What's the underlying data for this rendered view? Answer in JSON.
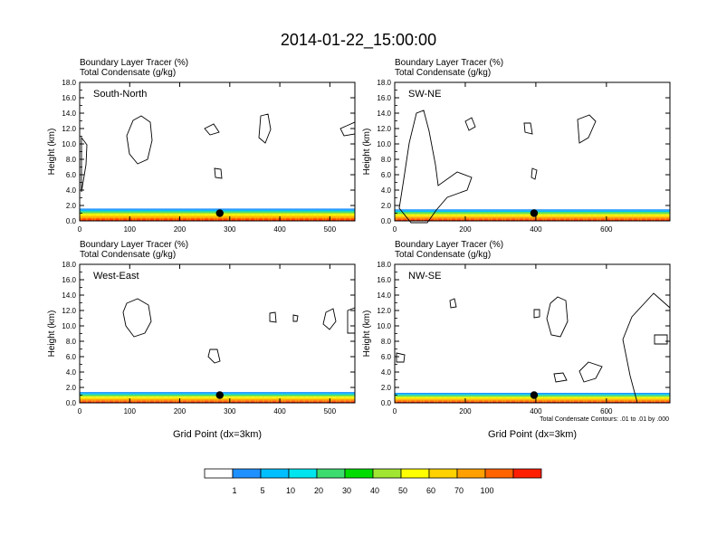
{
  "title": "2014-01-22_15:00:00",
  "colorbar": {
    "colors": [
      "#ffffff",
      "#1e90ff",
      "#00bfff",
      "#00e5ee",
      "#3cdc6e",
      "#00dc00",
      "#a0e632",
      "#ffff00",
      "#ffd200",
      "#ffa000",
      "#ff6400",
      "#ff1e00"
    ],
    "labels": [
      "1",
      "5",
      "10",
      "20",
      "30",
      "40",
      "50",
      "60",
      "70",
      "100"
    ]
  },
  "chart_data": [
    {
      "type": "contour_cross_section",
      "panel": "South-North",
      "line1": "Boundary Layer Tracer   (%)",
      "line2": "Total Condensate   (g/kg)",
      "ylabel": "Height (km)",
      "xlabel": "",
      "ylim": [
        0,
        18
      ],
      "xlim": [
        0,
        550
      ],
      "xticks": [
        "0",
        "100",
        "200",
        "300",
        "400",
        "500"
      ],
      "yticks": [
        "0.0",
        "2.0",
        "4.0",
        "6.0",
        "8.0",
        "10.0",
        "12.0",
        "14.0",
        "16.0",
        "18.0"
      ],
      "tracer_top_km": 1.6,
      "marker_x": 280,
      "marker_y_km": 1.0,
      "footnote": ""
    },
    {
      "type": "contour_cross_section",
      "panel": "SW-NE",
      "line1": "Boundary Layer Tracer   (%)",
      "line2": "Total Condensate   (g/kg)",
      "ylabel": "Height (km)",
      "xlabel": "",
      "ylim": [
        0,
        18
      ],
      "xlim": [
        0,
        780
      ],
      "xticks": [
        "0",
        "200",
        "400",
        "600"
      ],
      "yticks": [
        "0.0",
        "2.0",
        "4.0",
        "6.0",
        "8.0",
        "10.0",
        "12.0",
        "14.0",
        "16.0",
        "18.0"
      ],
      "tracer_top_km": 1.5,
      "marker_x": 395,
      "marker_y_km": 1.0,
      "footnote": ""
    },
    {
      "type": "contour_cross_section",
      "panel": "West-East",
      "line1": "Boundary Layer Tracer   (%)",
      "line2": "Total Condensate   (g/kg)",
      "ylabel": "Height (km)",
      "xlabel": "Grid Point (dx=3km)",
      "ylim": [
        0,
        18
      ],
      "xlim": [
        0,
        550
      ],
      "xticks": [
        "0",
        "100",
        "200",
        "300",
        "400",
        "500"
      ],
      "yticks": [
        "0.0",
        "2.0",
        "4.0",
        "6.0",
        "8.0",
        "10.0",
        "12.0",
        "14.0",
        "16.0",
        "18.0"
      ],
      "tracer_top_km": 1.4,
      "marker_x": 280,
      "marker_y_km": 1.0,
      "footnote": ""
    },
    {
      "type": "contour_cross_section",
      "panel": "NW-SE",
      "line1": "Boundary Layer Tracer   (%)",
      "line2": "Total Condensate   (g/kg)",
      "ylabel": "Height (km)",
      "xlabel": "Grid Point (dx=3km)",
      "ylim": [
        0,
        18
      ],
      "xlim": [
        0,
        780
      ],
      "xticks": [
        "0",
        "200",
        "400",
        "600"
      ],
      "yticks": [
        "0.0",
        "2.0",
        "4.0",
        "6.0",
        "8.0",
        "10.0",
        "12.0",
        "14.0",
        "16.0",
        "18.0"
      ],
      "tracer_top_km": 1.3,
      "marker_x": 395,
      "marker_y_km": 1.0,
      "footnote": "Total Condensate Contours: .01 to .01 by .000"
    }
  ]
}
